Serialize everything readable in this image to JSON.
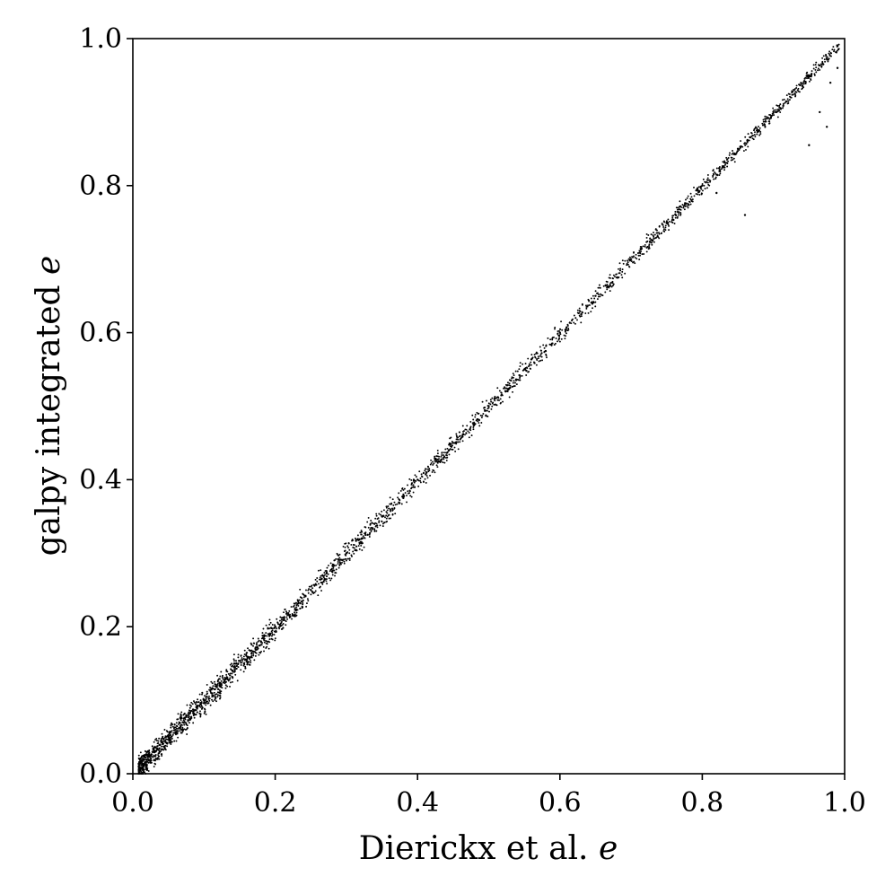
{
  "chart_data": {
    "type": "scatter",
    "title": "",
    "xlabel": "Dierickx et al.",
    "xlabel_symbol": "e",
    "ylabel": "galpy integrated",
    "ylabel_symbol": "e",
    "xlim": [
      0.0,
      1.0
    ],
    "ylim": [
      0.0,
      1.0
    ],
    "xticks": [
      "0.0",
      "0.2",
      "0.4",
      "0.6",
      "0.8",
      "1.0"
    ],
    "yticks": [
      "0.0",
      "0.2",
      "0.4",
      "0.6",
      "0.8",
      "1.0"
    ],
    "grid": false,
    "legend": "none",
    "marker_color": "#000000",
    "trend": {
      "slope": 1.0,
      "intercept": 0.0
    },
    "series": [
      {
        "points": [
          [
            0.01,
            0.02
          ],
          [
            0.015,
            0.01
          ],
          [
            0.02,
            0.005
          ],
          [
            0.02,
            0.025
          ],
          [
            0.025,
            0.015
          ],
          [
            0.03,
            0.03
          ],
          [
            0.035,
            0.02
          ],
          [
            0.04,
            0.045
          ],
          [
            0.045,
            0.035
          ],
          [
            0.05,
            0.05
          ],
          [
            0.06,
            0.055
          ],
          [
            0.07,
            0.07
          ],
          [
            0.08,
            0.075
          ],
          [
            0.09,
            0.09
          ],
          [
            0.1,
            0.1
          ],
          [
            0.12,
            0.115
          ],
          [
            0.14,
            0.14
          ],
          [
            0.16,
            0.155
          ],
          [
            0.18,
            0.18
          ],
          [
            0.2,
            0.2
          ],
          [
            0.22,
            0.215
          ],
          [
            0.25,
            0.25
          ],
          [
            0.28,
            0.275
          ],
          [
            0.3,
            0.3
          ],
          [
            0.33,
            0.325
          ],
          [
            0.35,
            0.35
          ],
          [
            0.38,
            0.375
          ],
          [
            0.4,
            0.4
          ],
          [
            0.43,
            0.425
          ],
          [
            0.45,
            0.45
          ],
          [
            0.48,
            0.475
          ],
          [
            0.5,
            0.5
          ],
          [
            0.53,
            0.525
          ],
          [
            0.55,
            0.55
          ],
          [
            0.58,
            0.575
          ],
          [
            0.6,
            0.6
          ],
          [
            0.63,
            0.625
          ],
          [
            0.65,
            0.65
          ],
          [
            0.68,
            0.675
          ],
          [
            0.7,
            0.7
          ],
          [
            0.73,
            0.725
          ],
          [
            0.75,
            0.75
          ],
          [
            0.78,
            0.775
          ],
          [
            0.8,
            0.8
          ],
          [
            0.83,
            0.825
          ],
          [
            0.85,
            0.85
          ],
          [
            0.88,
            0.875
          ],
          [
            0.9,
            0.9
          ],
          [
            0.93,
            0.925
          ],
          [
            0.95,
            0.95
          ],
          [
            0.97,
            0.965
          ],
          [
            0.99,
            0.99
          ],
          [
            0.82,
            0.79
          ],
          [
            0.86,
            0.76
          ],
          [
            0.95,
            0.855
          ],
          [
            0.965,
            0.9
          ],
          [
            0.98,
            0.94
          ],
          [
            0.975,
            0.88
          ],
          [
            0.99,
            0.96
          ]
        ]
      }
    ]
  }
}
